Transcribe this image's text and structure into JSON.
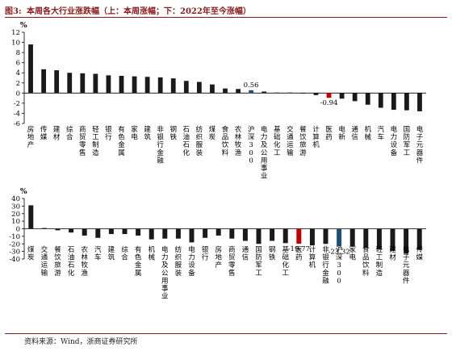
{
  "header": {
    "figure_label": "图3:",
    "title": "本周各大行业涨跌幅（上：本周涨幅；下：2022年至今涨幅）"
  },
  "source": "资料来源：Wind，浙商证券研究所",
  "colors": {
    "bar": "#1a1a1a",
    "highlight_red": "#c00000",
    "highlight_blue": "#1f4e79",
    "accent": "#8b1a1a"
  },
  "chart_data": [
    {
      "type": "bar",
      "unit": "%",
      "ylim": [
        -6,
        12
      ],
      "yticks": [
        -6,
        -4,
        -2,
        0,
        2,
        4,
        6,
        8,
        10,
        12
      ],
      "grid": false,
      "categories": [
        "房地产",
        "传媒",
        "建材",
        "综合",
        "商贸零售",
        "轻工制造",
        "银行",
        "有色金属",
        "家电",
        "建筑",
        "非银行金融",
        "钢铁",
        "石油石化",
        "纺织服装",
        "煤炭",
        "食品饮料",
        "农林牧渔",
        "沪深300",
        "电力及公用事业",
        "基础化工",
        "交通运输",
        "餐饮旅游",
        "计算机",
        "医药",
        "电新",
        "通信",
        "机械",
        "汽车",
        "电力设备",
        "国防军工",
        "电子元器件"
      ],
      "values": [
        9.6,
        4.7,
        4.5,
        4.0,
        3.9,
        3.8,
        3.5,
        3.4,
        3.3,
        3.2,
        3.1,
        2.9,
        2.4,
        2.2,
        1.7,
        0.9,
        0.8,
        0.56,
        0.3,
        0.1,
        0.1,
        -0.1,
        -0.4,
        -0.94,
        -1.1,
        -1.6,
        -2.3,
        -2.9,
        -3.3,
        -3.4,
        -3.6
      ],
      "data_labels": [
        {
          "category": "沪深300",
          "text": "0.56"
        },
        {
          "category": "医药",
          "text": "-0.94"
        }
      ],
      "highlights": {
        "沪深300": "blue",
        "医药": "red"
      }
    },
    {
      "type": "bar",
      "unit": "%",
      "ylim": [
        -40,
        40
      ],
      "yticks": [
        -40,
        -30,
        -20,
        -10,
        0,
        10,
        20,
        30,
        40
      ],
      "grid": false,
      "categories": [
        "煤炭",
        "交通运输",
        "餐饮旅游",
        "石油石化",
        "农林牧渔",
        "汽车",
        "建筑",
        "综合",
        "有色金属",
        "机械",
        "电力及公用事业",
        "纺织服装",
        "电力设备",
        "银行",
        "房地产",
        "商贸零售",
        "通信",
        "国防军工",
        "钢铁",
        "基础化工",
        "医药",
        "计算机",
        "非银行金融",
        "沪深300",
        "家电",
        "食品饮料",
        "轻工制造",
        "建材",
        "电子元器件",
        "传媒"
      ],
      "values": [
        31,
        1,
        -2,
        -5,
        -9,
        -12,
        -7,
        -7,
        -9,
        -14,
        -13,
        -13,
        -18,
        -12,
        -9,
        -13,
        -16,
        -20,
        -16,
        -19,
        -19.77,
        -22,
        -20,
        -23.32,
        -23,
        -25,
        -27,
        -29,
        -33,
        -28
      ],
      "data_labels": [
        {
          "category": "医药",
          "text": "-19.77"
        },
        {
          "category": "沪深300",
          "text": "-23.32"
        }
      ],
      "highlights": {
        "医药": "red",
        "沪深300": "blue"
      }
    }
  ]
}
